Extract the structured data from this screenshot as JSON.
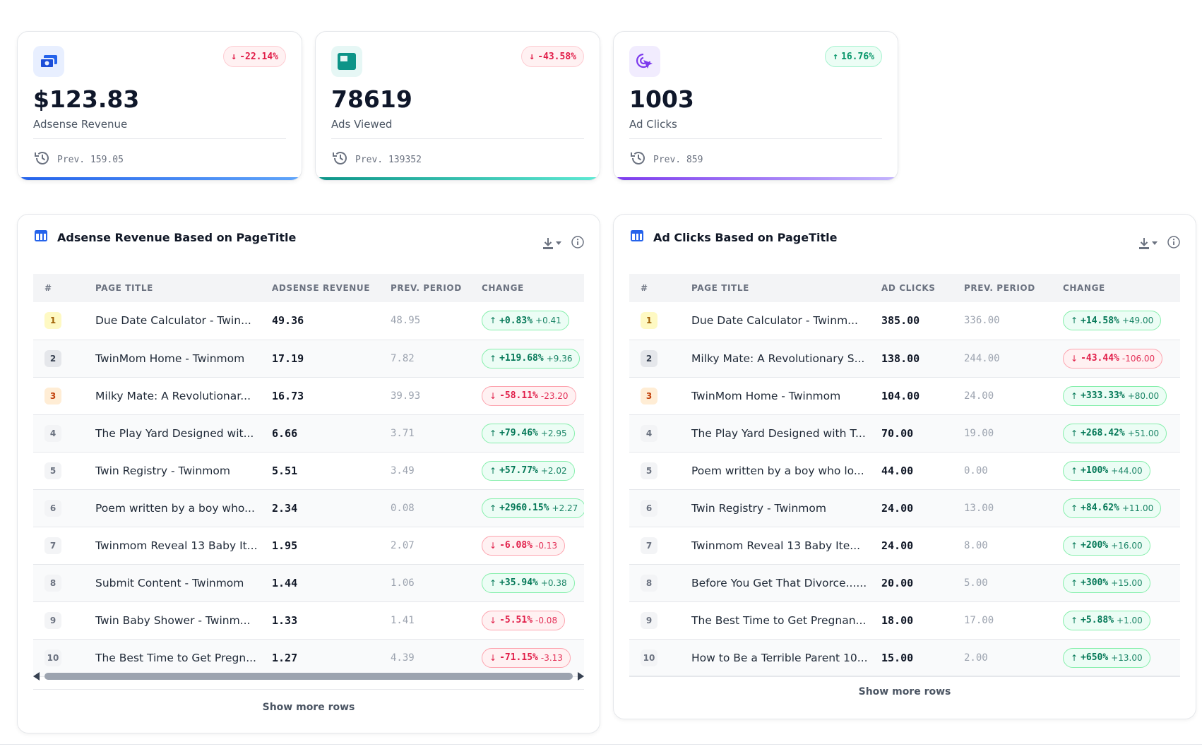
{
  "kpis": [
    {
      "value": "$123.83",
      "label": "Adsense Revenue",
      "delta": "-22.14%",
      "delta_dir": "down",
      "prev": "Prev. 159.05",
      "icon": "money-icon",
      "accent": "#3b82f6"
    },
    {
      "value": "78619",
      "label": "Ads Viewed",
      "delta": "-43.58%",
      "delta_dir": "down",
      "prev": "Prev. 139352",
      "icon": "ad-icon",
      "accent": "#14b8a6"
    },
    {
      "value": "1003",
      "label": "Ad Clicks",
      "delta": "16.76%",
      "delta_dir": "up",
      "prev": "Prev. 859",
      "icon": "cursor-click-icon",
      "accent": "#8b5cf6"
    }
  ],
  "revenue_table": {
    "title": "Adsense Revenue Based on PageTitle",
    "columns": [
      "#",
      "PAGE TITLE",
      "ADSENSE REVENUE",
      "PREV. PERIOD",
      "CHANGE"
    ],
    "rows": [
      {
        "rank": "1",
        "title": "Due Date Calculator - Twin...",
        "value": "49.36",
        "prev": "48.95",
        "pct": "+0.83%",
        "abs": "+0.41",
        "dir": "up"
      },
      {
        "rank": "2",
        "title": "TwinMom Home - Twinmom",
        "value": "17.19",
        "prev": "7.82",
        "pct": "+119.68%",
        "abs": "+9.36",
        "dir": "up"
      },
      {
        "rank": "3",
        "title": "Milky Mate: A Revolutionar...",
        "value": "16.73",
        "prev": "39.93",
        "pct": "-58.11%",
        "abs": "-23.20",
        "dir": "down"
      },
      {
        "rank": "4",
        "title": "The Play Yard Designed wit...",
        "value": "6.66",
        "prev": "3.71",
        "pct": "+79.46%",
        "abs": "+2.95",
        "dir": "up"
      },
      {
        "rank": "5",
        "title": "Twin Registry - Twinmom",
        "value": "5.51",
        "prev": "3.49",
        "pct": "+57.77%",
        "abs": "+2.02",
        "dir": "up"
      },
      {
        "rank": "6",
        "title": "Poem written by a boy who...",
        "value": "2.34",
        "prev": "0.08",
        "pct": "+2960.15%",
        "abs": "+2.27",
        "dir": "up"
      },
      {
        "rank": "7",
        "title": "Twinmom Reveal 13 Baby It...",
        "value": "1.95",
        "prev": "2.07",
        "pct": "-6.08%",
        "abs": "-0.13",
        "dir": "down"
      },
      {
        "rank": "8",
        "title": "Submit Content - Twinmom",
        "value": "1.44",
        "prev": "1.06",
        "pct": "+35.94%",
        "abs": "+0.38",
        "dir": "up"
      },
      {
        "rank": "9",
        "title": "Twin Baby Shower - Twinm...",
        "value": "1.33",
        "prev": "1.41",
        "pct": "-5.51%",
        "abs": "-0.08",
        "dir": "down"
      },
      {
        "rank": "10",
        "title": "The Best Time to Get Pregn...",
        "value": "1.27",
        "prev": "4.39",
        "pct": "-71.15%",
        "abs": "-3.13",
        "dir": "down"
      }
    ],
    "show_more": "Show more rows"
  },
  "clicks_table": {
    "title": "Ad Clicks Based on PageTitle",
    "columns": [
      "#",
      "PAGE TITLE",
      "AD CLICKS",
      "PREV. PERIOD",
      "CHANGE"
    ],
    "rows": [
      {
        "rank": "1",
        "title": "Due Date Calculator - Twinm...",
        "value": "385.00",
        "prev": "336.00",
        "pct": "+14.58%",
        "abs": "+49.00",
        "dir": "up"
      },
      {
        "rank": "2",
        "title": "Milky Mate: A Revolutionary S...",
        "value": "138.00",
        "prev": "244.00",
        "pct": "-43.44%",
        "abs": "-106.00",
        "dir": "down"
      },
      {
        "rank": "3",
        "title": "TwinMom Home - Twinmom",
        "value": "104.00",
        "prev": "24.00",
        "pct": "+333.33%",
        "abs": "+80.00",
        "dir": "up"
      },
      {
        "rank": "4",
        "title": "The Play Yard Designed with T...",
        "value": "70.00",
        "prev": "19.00",
        "pct": "+268.42%",
        "abs": "+51.00",
        "dir": "up"
      },
      {
        "rank": "5",
        "title": "Poem written by a boy who lo...",
        "value": "44.00",
        "prev": "0.00",
        "pct": "+100%",
        "abs": "+44.00",
        "dir": "up"
      },
      {
        "rank": "6",
        "title": "Twin Registry - Twinmom",
        "value": "24.00",
        "prev": "13.00",
        "pct": "+84.62%",
        "abs": "+11.00",
        "dir": "up"
      },
      {
        "rank": "7",
        "title": "Twinmom Reveal 13 Baby Ite...",
        "value": "24.00",
        "prev": "8.00",
        "pct": "+200%",
        "abs": "+16.00",
        "dir": "up"
      },
      {
        "rank": "8",
        "title": "Before You Get That Divorce......",
        "value": "20.00",
        "prev": "5.00",
        "pct": "+300%",
        "abs": "+15.00",
        "dir": "up"
      },
      {
        "rank": "9",
        "title": "The Best Time to Get Pregnan...",
        "value": "18.00",
        "prev": "17.00",
        "pct": "+5.88%",
        "abs": "+1.00",
        "dir": "up"
      },
      {
        "rank": "10",
        "title": "How to Be a Terrible Parent 10...",
        "value": "15.00",
        "prev": "2.00",
        "pct": "+650%",
        "abs": "+13.00",
        "dir": "up"
      }
    ],
    "show_more": "Show more rows"
  }
}
